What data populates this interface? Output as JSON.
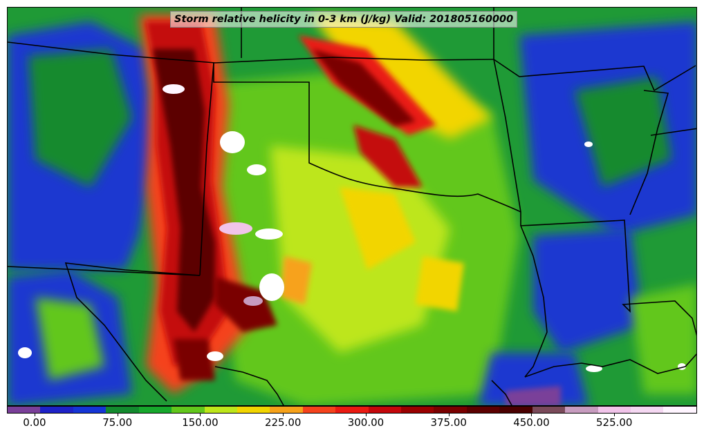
{
  "title": "Storm relative helicity in 0-3 km (J/kg) Valid: 201805160000",
  "colorbar": {
    "colors": [
      "#7a3f99",
      "#1e22c8",
      "#1535d6",
      "#138a2e",
      "#17a82c",
      "#62c71c",
      "#bde61a",
      "#f2d500",
      "#f7a21a",
      "#f5421c",
      "#ea1a12",
      "#c4070b",
      "#9a0000",
      "#7a0000",
      "#5c0000",
      "#4a0000",
      "#7a4a5a",
      "#c79cbf",
      "#f1c4ea",
      "#f5d8f2",
      "#fff5ff"
    ],
    "tick_values": [
      0,
      75,
      150,
      225,
      300,
      375,
      450,
      525
    ],
    "tick_labels": [
      "0.00",
      "75.00",
      "150.00",
      "225.00",
      "300.00",
      "375.00",
      "450.00",
      "525.00"
    ],
    "range": [
      -25,
      600
    ]
  }
}
